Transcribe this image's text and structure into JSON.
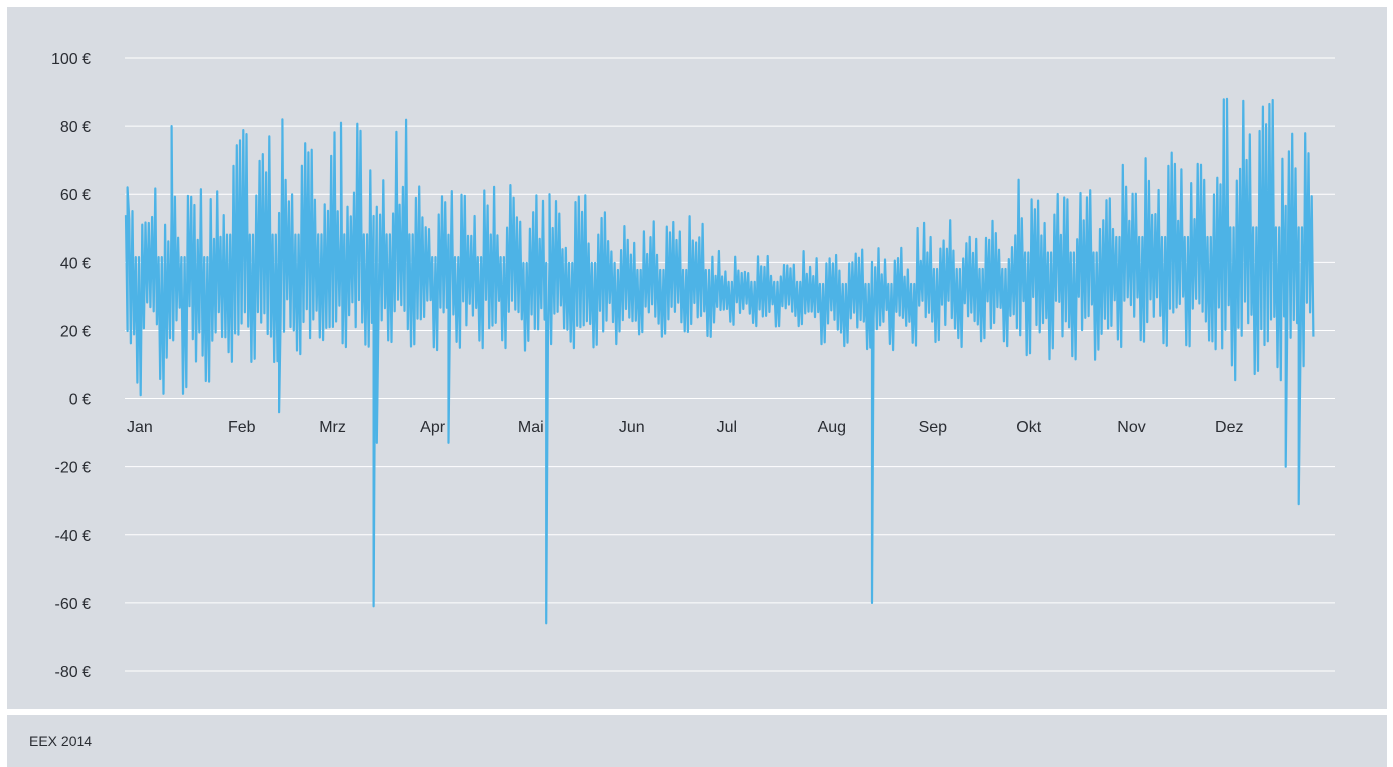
{
  "source": "EEX 2014",
  "chart_data": {
    "type": "line",
    "title": "",
    "xlabel": "",
    "ylabel": "",
    "unit_suffix": " €",
    "ylim": [
      -80,
      100
    ],
    "yticks": [
      100,
      80,
      60,
      40,
      20,
      0,
      -20,
      -40,
      -60,
      -80
    ],
    "ytick_labels": [
      "100 €",
      "80 €",
      "60 €",
      "40 €",
      "20 €",
      "0 €",
      "-20 €",
      "-40 €",
      "-60 €",
      "-80 €"
    ],
    "grid": true,
    "colors": {
      "line": "#4db3e6",
      "grid": "#ffffff",
      "background": "#d8dce2"
    },
    "x_unit": "day of year 2014",
    "xlim": [
      1,
      366
    ],
    "months": [
      {
        "label": "Jan",
        "day": 1
      },
      {
        "label": "Feb",
        "day": 32
      },
      {
        "label": "Mrz",
        "day": 60
      },
      {
        "label": "Apr",
        "day": 91
      },
      {
        "label": "Mai",
        "day": 121
      },
      {
        "label": "Jun",
        "day": 152
      },
      {
        "label": "Jul",
        "day": 182
      },
      {
        "label": "Aug",
        "day": 213
      },
      {
        "label": "Sep",
        "day": 244
      },
      {
        "label": "Okt",
        "day": 274
      },
      {
        "label": "Nov",
        "day": 305
      },
      {
        "label": "Dez",
        "day": 335
      }
    ],
    "series": [
      {
        "name": "",
        "values_per_day": 2,
        "envelope_by_month": [
          {
            "month": "Jan",
            "low": 0,
            "base": 30,
            "high": 63
          },
          {
            "month": "Feb",
            "low": 10,
            "base": 31,
            "high": 80
          },
          {
            "month": "Mrz",
            "low": 15,
            "base": 30,
            "high": 82
          },
          {
            "month": "Apr",
            "low": 14,
            "base": 30,
            "high": 63
          },
          {
            "month": "Mai",
            "low": 14,
            "base": 29,
            "high": 60
          },
          {
            "month": "Jun",
            "low": 18,
            "base": 29,
            "high": 54
          },
          {
            "month": "Jul",
            "low": 21,
            "base": 29,
            "high": 44
          },
          {
            "month": "Aug",
            "low": 14,
            "base": 27,
            "high": 46
          },
          {
            "month": "Sep",
            "low": 15,
            "base": 30,
            "high": 53
          },
          {
            "month": "Okt",
            "low": 11,
            "base": 31,
            "high": 65
          },
          {
            "month": "Nov",
            "low": 15,
            "base": 31,
            "high": 78
          },
          {
            "month": "Dez",
            "low": 5,
            "base": 30,
            "high": 88
          }
        ],
        "notable_points": [
          {
            "day": 1.5,
            "value": 62
          },
          {
            "day": 15,
            "value": 80
          },
          {
            "day": 48,
            "value": -4
          },
          {
            "day": 49,
            "value": 82
          },
          {
            "day": 67,
            "value": 81
          },
          {
            "day": 77,
            "value": -61
          },
          {
            "day": 78,
            "value": -13
          },
          {
            "day": 87,
            "value": 81
          },
          {
            "day": 100,
            "value": -13
          },
          {
            "day": 130,
            "value": -66
          },
          {
            "day": 131,
            "value": 60
          },
          {
            "day": 230,
            "value": -60
          },
          {
            "day": 338,
            "value": 83
          },
          {
            "day": 339,
            "value": 88
          },
          {
            "day": 357,
            "value": -20
          },
          {
            "day": 361,
            "value": -31
          }
        ]
      }
    ]
  }
}
